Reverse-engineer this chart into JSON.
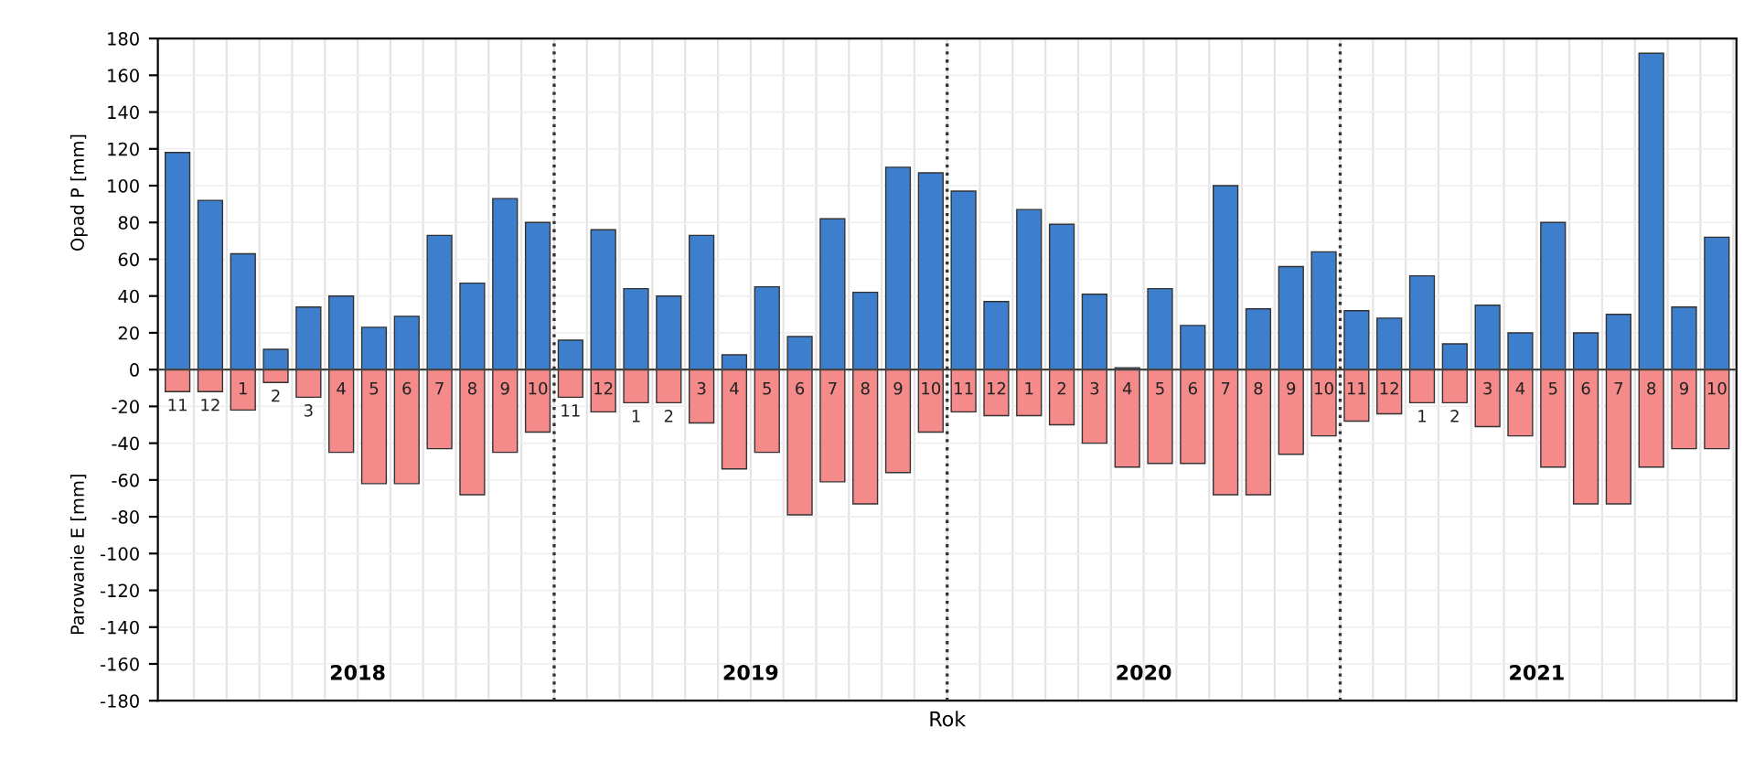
{
  "chart_data": {
    "type": "bar",
    "xlabel": "Rok",
    "ylabel": "Parowanie E [mm]",
    "y2label": "Opad P [mm]",
    "categories": [
      "11",
      "12",
      "1",
      "2",
      "3",
      "4",
      "5",
      "6",
      "7",
      "8",
      "9",
      "10",
      "11",
      "12",
      "1",
      "2",
      "3",
      "4",
      "5",
      "6",
      "7",
      "8",
      "9",
      "10",
      "11",
      "12",
      "1",
      "2",
      "3",
      "4",
      "5",
      "6",
      "7",
      "8",
      "9",
      "10",
      "11",
      "12",
      "1",
      "2",
      "3",
      "4",
      "5",
      "6",
      "7",
      "8",
      "9",
      "10"
    ],
    "series": [
      {
        "color": "#3e7fcd",
        "values": [
          118,
          92,
          63,
          11,
          34,
          40,
          23,
          29,
          73,
          47,
          93,
          80,
          16,
          76,
          44,
          40,
          73,
          8,
          45,
          18,
          82,
          42,
          110,
          107,
          97,
          37,
          87,
          79,
          41,
          1,
          44,
          24,
          100,
          33,
          56,
          64,
          32,
          28,
          51,
          14,
          35,
          20,
          80,
          20,
          30,
          172,
          34,
          72
        ]
      },
      {
        "color": "#f58a8a",
        "values": [
          -12,
          -12,
          -22,
          -7,
          -15,
          -45,
          -62,
          -62,
          -43,
          -68,
          -45,
          -34,
          -15,
          -23,
          -18,
          -18,
          -29,
          -54,
          -45,
          -79,
          -61,
          -73,
          -56,
          -34,
          -23,
          -25,
          -25,
          -30,
          -40,
          -53,
          -51,
          -51,
          -68,
          -68,
          -46,
          -36,
          -28,
          -24,
          -18,
          -18,
          -31,
          -36,
          -53,
          -73,
          -73,
          -53,
          -43,
          -43
        ]
      }
    ],
    "ylim": [
      -180,
      180
    ],
    "yticks": [
      {
        "value": -180,
        "label": "-180"
      },
      {
        "value": -160,
        "label": "-160"
      },
      {
        "value": -140,
        "label": "-140"
      },
      {
        "value": -120,
        "label": "-120"
      },
      {
        "value": -100,
        "label": "-100"
      },
      {
        "value": -80,
        "label": "-80"
      },
      {
        "value": -60,
        "label": "-60"
      },
      {
        "value": -40,
        "label": "-40"
      },
      {
        "value": -20,
        "label": "-20"
      },
      0,
      20,
      40,
      60,
      80,
      100,
      120,
      140,
      160,
      180
    ],
    "stacked": true,
    "annotations": [
      "2018",
      "2019",
      "2020",
      "2021"
    ],
    "grid": true
  }
}
